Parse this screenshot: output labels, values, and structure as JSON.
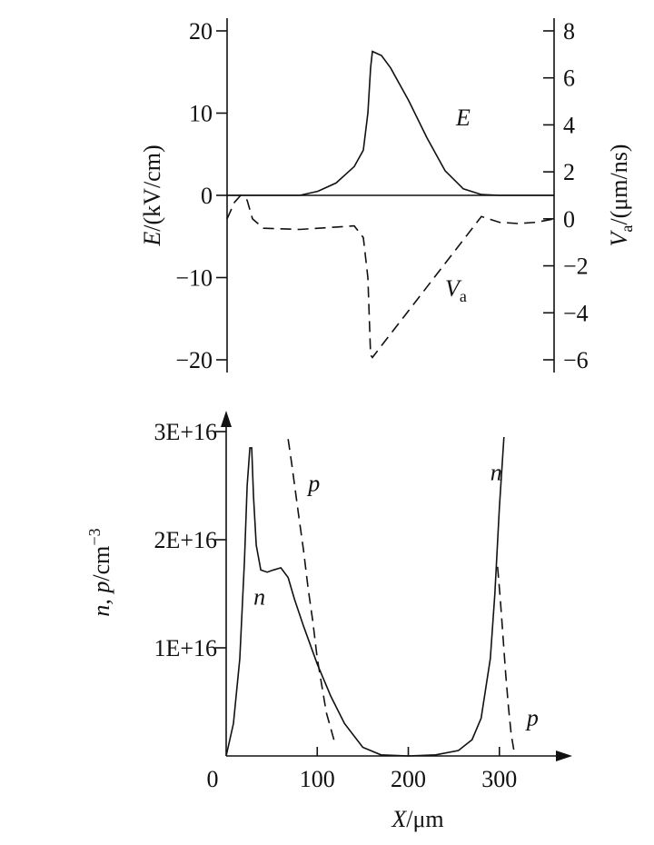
{
  "chart_data": [
    {
      "type": "line",
      "x_range": [
        0,
        360
      ],
      "left_axis": {
        "label_var": "E",
        "label_unit": "/(kV/cm)",
        "ylim": [
          -20,
          20
        ],
        "ticks": [
          -20,
          -10,
          0,
          10,
          20
        ]
      },
      "right_axis": {
        "label_var": "V",
        "label_sub": "a",
        "label_unit": "/(μm/ns)",
        "ylim": [
          -6,
          8
        ],
        "ticks": [
          -6,
          -4,
          -2,
          0,
          2,
          4,
          6,
          8
        ],
        "tick_labels": [
          "−6",
          "−4",
          "−2",
          "0",
          "2",
          "4",
          "6",
          "8"
        ]
      },
      "left_tick_labels": [
        "−20",
        "−10",
        "0",
        "10",
        "20"
      ],
      "series": [
        {
          "name": "E",
          "axis": "left",
          "style": "solid",
          "x": [
            0,
            80,
            100,
            120,
            140,
            150,
            155,
            158,
            160,
            170,
            180,
            200,
            220,
            240,
            260,
            280,
            300,
            360
          ],
          "y": [
            0,
            0,
            0.5,
            1.5,
            3.5,
            5.5,
            10,
            15.5,
            17.5,
            17,
            15.5,
            11.5,
            7,
            3,
            0.8,
            0.1,
            0,
            0
          ]
        },
        {
          "name": "V_a",
          "axis": "right",
          "style": "dashed",
          "x": [
            0,
            8,
            15,
            22,
            28,
            40,
            80,
            120,
            140,
            150,
            155,
            158,
            160,
            200,
            240,
            280,
            300,
            320,
            340,
            360
          ],
          "y": [
            0,
            0.7,
            1.0,
            0.8,
            0,
            -0.4,
            -0.45,
            -0.35,
            -0.3,
            -0.8,
            -2.5,
            -5.8,
            -5.9,
            -3.9,
            -1.9,
            0.1,
            -0.15,
            -0.2,
            -0.15,
            0
          ]
        }
      ],
      "annotations": [
        {
          "text": "E",
          "x": 252,
          "y": 8.5,
          "axis": "left"
        },
        {
          "text": "V",
          "sub": "a",
          "x": 240,
          "y": -3.3,
          "axis": "right"
        }
      ]
    },
    {
      "type": "line",
      "xlabel_var": "X",
      "xlabel_unit": "/μm",
      "xlim": [
        0,
        380
      ],
      "xticks": [
        0,
        100,
        200,
        300
      ],
      "ylim": [
        0,
        3e+16
      ],
      "yticks": [
        0,
        1e+16,
        2e+16,
        3e+16
      ],
      "ytick_labels": [
        "",
        "1E+16",
        "2E+16",
        "3E+16"
      ],
      "ylabel_var": "n, p",
      "ylabel_unit": "/cm",
      "ylabel_exp": "−3",
      "series": [
        {
          "name": "n",
          "style": "solid",
          "x": [
            0,
            8,
            15,
            20,
            23,
            26,
            28,
            30,
            33,
            38,
            45,
            52,
            60,
            68,
            75,
            85,
            100,
            115,
            130,
            150,
            170,
            200,
            230,
            255,
            270,
            280,
            290,
            295,
            300,
            305
          ],
          "y": [
            0,
            3000000000000000.0,
            9000000000000000.0,
            1.8e+16,
            2.5e+16,
            2.85e+16,
            2.85e+16,
            2.4e+16,
            1.95e+16,
            1.72e+16,
            1.7e+16,
            1.72e+16,
            1.74e+16,
            1.65e+16,
            1.45e+16,
            1.2e+16,
            8500000000000000.0,
            5500000000000000.0,
            3000000000000000.0,
            800000000000000.0,
            100000000000000.0,
            0,
            100000000000000.0,
            500000000000000.0,
            1500000000000000.0,
            3500000000000000.0,
            9000000000000000.0,
            1.5e+16,
            2.3e+16,
            2.95e+16
          ]
        },
        {
          "name": "p",
          "style": "dashed",
          "x": [
            68,
            72,
            76,
            80,
            85,
            90,
            95,
            100,
            105,
            110,
            120
          ],
          "y": [
            2.93e+16,
            2.7e+16,
            2.45e+16,
            2.2e+16,
            1.9e+16,
            1.55e+16,
            1.25e+16,
            9000000000000000.0,
            6500000000000000.0,
            4000000000000000.0,
            1000000000000000.0
          ]
        },
        {
          "name": "p",
          "style": "dashed",
          "x": [
            298,
            301,
            304,
            307,
            310,
            313,
            317
          ],
          "y": [
            1.75e+16,
            1.45e+16,
            1.1e+16,
            7500000000000000.0,
            4500000000000000.0,
            2000000000000000.0,
            0
          ]
        }
      ],
      "annotations": [
        {
          "text": "p",
          "x": 90,
          "y": 2.45e+16
        },
        {
          "text": "n",
          "x": 30,
          "y": 1.4e+16
        },
        {
          "text": "n",
          "x": 290,
          "y": 2.55e+16
        },
        {
          "text": "p",
          "x": 330,
          "y": 2800000000000000.0
        }
      ]
    }
  ]
}
